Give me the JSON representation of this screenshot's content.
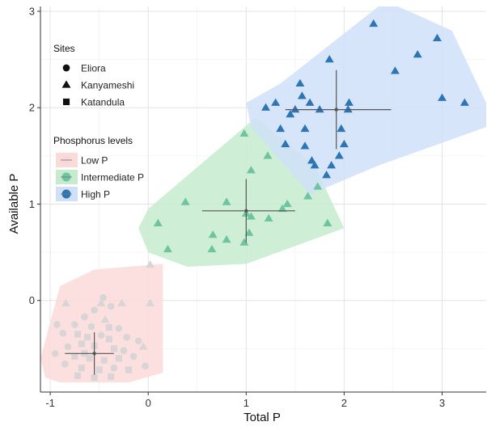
{
  "chart_data": {
    "type": "scatter",
    "xlabel": "Total P",
    "ylabel": "Available P",
    "xlim": [
      -1.1,
      3.45
    ],
    "ylim": [
      -0.95,
      3.05
    ],
    "x_ticks": [
      -1,
      0,
      1,
      2,
      3
    ],
    "y_ticks": [
      0,
      1,
      2,
      3
    ],
    "grid": true,
    "legend_position": "top-left",
    "legend_sites": {
      "title": "Sites",
      "items": [
        {
          "label": "Eliora",
          "shape": "circle"
        },
        {
          "label": "Kanyameshi",
          "shape": "triangle"
        },
        {
          "label": "Katandula",
          "shape": "square"
        }
      ]
    },
    "legend_levels": {
      "title": "Phosphorus levels",
      "items": [
        {
          "label": "Low P",
          "color": "#f8d7d9",
          "fill": "#fbdada"
        },
        {
          "label": "Intermediate P",
          "color": "#6fc4a0",
          "fill": "#c6ebcf"
        },
        {
          "label": "High P",
          "color": "#2e75b6",
          "fill": "#cfe0f8"
        }
      ]
    },
    "series": [
      {
        "name": "Low P",
        "color": "#d9d4d6",
        "fill": "#fbdada",
        "hull": [
          [
            -1.1,
            -0.6
          ],
          [
            -0.9,
            0.15
          ],
          [
            -0.55,
            0.32
          ],
          [
            0.15,
            0.38
          ],
          [
            0.15,
            -0.75
          ],
          [
            -0.2,
            -0.85
          ],
          [
            -0.9,
            -0.85
          ],
          [
            -1.05,
            -0.8
          ]
        ],
        "mean": [
          -0.55,
          -0.55
        ],
        "se_x": [
          -0.85,
          -0.35
        ],
        "se_y": [
          -0.77,
          -0.33
        ],
        "points": [
          {
            "x": -0.84,
            "y": -0.03,
            "s": "triangle"
          },
          {
            "x": -0.48,
            "y": -0.03,
            "s": "triangle"
          },
          {
            "x": -0.27,
            "y": -0.03,
            "s": "triangle"
          },
          {
            "x": 0.02,
            "y": -0.03,
            "s": "triangle"
          },
          {
            "x": 0.02,
            "y": 0.37,
            "s": "triangle"
          },
          {
            "x": -0.46,
            "y": 0.03,
            "s": "circle"
          },
          {
            "x": -0.38,
            "y": -0.06,
            "s": "circle"
          },
          {
            "x": -0.55,
            "y": -0.1,
            "s": "circle"
          },
          {
            "x": -0.65,
            "y": -0.17,
            "s": "circle"
          },
          {
            "x": -0.44,
            "y": -0.2,
            "s": "triangle"
          },
          {
            "x": -0.75,
            "y": -0.25,
            "s": "circle"
          },
          {
            "x": -0.58,
            "y": -0.27,
            "s": "circle"
          },
          {
            "x": -0.3,
            "y": -0.29,
            "s": "circle"
          },
          {
            "x": -0.93,
            "y": -0.25,
            "s": "circle"
          },
          {
            "x": -0.87,
            "y": -0.34,
            "s": "circle"
          },
          {
            "x": -0.72,
            "y": -0.35,
            "s": "square"
          },
          {
            "x": -0.62,
            "y": -0.38,
            "s": "square"
          },
          {
            "x": -0.48,
            "y": -0.36,
            "s": "circle"
          },
          {
            "x": -0.4,
            "y": -0.4,
            "s": "square"
          },
          {
            "x": -0.22,
            "y": -0.38,
            "s": "circle"
          },
          {
            "x": -0.1,
            "y": -0.42,
            "s": "circle"
          },
          {
            "x": -0.05,
            "y": -0.48,
            "s": "triangle"
          },
          {
            "x": -0.68,
            "y": -0.45,
            "s": "square"
          },
          {
            "x": -0.82,
            "y": -0.48,
            "s": "circle"
          },
          {
            "x": -0.55,
            "y": -0.47,
            "s": "square"
          },
          {
            "x": -0.35,
            "y": -0.5,
            "s": "square"
          },
          {
            "x": -0.25,
            "y": -0.52,
            "s": "circle"
          },
          {
            "x": -0.95,
            "y": -0.55,
            "s": "circle"
          },
          {
            "x": -0.75,
            "y": -0.58,
            "s": "square"
          },
          {
            "x": -0.6,
            "y": -0.6,
            "s": "square"
          },
          {
            "x": -0.45,
            "y": -0.62,
            "s": "square"
          },
          {
            "x": -0.3,
            "y": -0.6,
            "s": "square"
          },
          {
            "x": -0.15,
            "y": -0.58,
            "s": "circle"
          },
          {
            "x": -0.85,
            "y": -0.66,
            "s": "circle"
          },
          {
            "x": -0.68,
            "y": -0.7,
            "s": "square"
          },
          {
            "x": -0.5,
            "y": -0.72,
            "s": "square"
          },
          {
            "x": -0.35,
            "y": -0.7,
            "s": "circle"
          },
          {
            "x": -0.2,
            "y": -0.72,
            "s": "square"
          },
          {
            "x": -0.03,
            "y": -0.68,
            "s": "circle"
          },
          {
            "x": -0.72,
            "y": -0.78,
            "s": "square"
          },
          {
            "x": -0.55,
            "y": -0.8,
            "s": "square"
          },
          {
            "x": -0.38,
            "y": -0.79,
            "s": "square"
          },
          {
            "x": -0.65,
            "y": -0.55,
            "s": "square"
          },
          {
            "x": -0.4,
            "y": -0.28,
            "s": "square"
          }
        ]
      },
      {
        "name": "Intermediate P",
        "color": "#6fc4a0",
        "fill": "#c6ebcf",
        "hull": [
          [
            -0.1,
            0.75
          ],
          [
            0.0,
            0.95
          ],
          [
            1.1,
            1.9
          ],
          [
            1.7,
            1.4
          ],
          [
            2.0,
            0.75
          ],
          [
            1.0,
            0.38
          ],
          [
            0.4,
            0.35
          ],
          [
            0.0,
            0.5
          ]
        ],
        "mean": [
          1.0,
          0.93
        ],
        "se_x": [
          0.55,
          1.5
        ],
        "se_y": [
          0.6,
          1.26
        ],
        "points": [
          {
            "x": 0.1,
            "y": 0.8,
            "s": "triangle"
          },
          {
            "x": 0.2,
            "y": 0.53,
            "s": "triangle"
          },
          {
            "x": 0.38,
            "y": 1.02,
            "s": "triangle"
          },
          {
            "x": 0.65,
            "y": 0.53,
            "s": "triangle"
          },
          {
            "x": 0.66,
            "y": 0.68,
            "s": "triangle"
          },
          {
            "x": 0.8,
            "y": 1.02,
            "s": "triangle"
          },
          {
            "x": 0.8,
            "y": 0.63,
            "s": "triangle"
          },
          {
            "x": 0.98,
            "y": 0.6,
            "s": "triangle"
          },
          {
            "x": 1.0,
            "y": 0.9,
            "s": "triangle"
          },
          {
            "x": 1.03,
            "y": 0.7,
            "s": "triangle"
          },
          {
            "x": 1.05,
            "y": 0.87,
            "s": "triangle"
          },
          {
            "x": 0.98,
            "y": 1.73,
            "s": "triangle"
          },
          {
            "x": 1.05,
            "y": 1.35,
            "s": "triangle"
          },
          {
            "x": 1.23,
            "y": 0.85,
            "s": "triangle"
          },
          {
            "x": 1.22,
            "y": 1.5,
            "s": "triangle"
          },
          {
            "x": 1.37,
            "y": 0.95,
            "s": "triangle"
          },
          {
            "x": 1.42,
            "y": 1.0,
            "s": "triangle"
          },
          {
            "x": 1.63,
            "y": 1.08,
            "s": "triangle"
          },
          {
            "x": 1.73,
            "y": 1.18,
            "s": "triangle"
          },
          {
            "x": 1.83,
            "y": 0.8,
            "s": "triangle"
          }
        ]
      },
      {
        "name": "High P",
        "color": "#2e75b6",
        "fill": "#cfe0f8",
        "hull": [
          [
            1.0,
            2.05
          ],
          [
            1.35,
            2.25
          ],
          [
            2.35,
            3.05
          ],
          [
            2.55,
            3.05
          ],
          [
            3.1,
            2.8
          ],
          [
            3.45,
            2.05
          ],
          [
            3.45,
            1.8
          ],
          [
            2.35,
            1.4
          ],
          [
            1.65,
            1.1
          ],
          [
            1.05,
            1.8
          ]
        ],
        "mean": [
          1.92,
          1.98
        ],
        "se_x": [
          1.4,
          2.48
        ],
        "se_y": [
          1.57,
          2.39
        ],
        "points": [
          {
            "x": 1.2,
            "y": 2.0,
            "s": "triangle"
          },
          {
            "x": 1.3,
            "y": 2.05,
            "s": "triangle"
          },
          {
            "x": 1.35,
            "y": 1.78,
            "s": "triangle"
          },
          {
            "x": 1.4,
            "y": 1.62,
            "s": "triangle"
          },
          {
            "x": 1.45,
            "y": 1.93,
            "s": "triangle"
          },
          {
            "x": 1.5,
            "y": 1.98,
            "s": "triangle"
          },
          {
            "x": 1.55,
            "y": 2.25,
            "s": "triangle"
          },
          {
            "x": 1.57,
            "y": 2.12,
            "s": "triangle"
          },
          {
            "x": 1.6,
            "y": 1.78,
            "s": "triangle"
          },
          {
            "x": 1.6,
            "y": 1.6,
            "s": "triangle"
          },
          {
            "x": 1.65,
            "y": 2.05,
            "s": "triangle"
          },
          {
            "x": 1.67,
            "y": 1.45,
            "s": "triangle"
          },
          {
            "x": 1.7,
            "y": 1.4,
            "s": "triangle"
          },
          {
            "x": 1.75,
            "y": 1.98,
            "s": "triangle"
          },
          {
            "x": 1.82,
            "y": 1.3,
            "s": "triangle"
          },
          {
            "x": 1.85,
            "y": 2.5,
            "s": "triangle"
          },
          {
            "x": 1.87,
            "y": 1.4,
            "s": "triangle"
          },
          {
            "x": 1.95,
            "y": 1.5,
            "s": "triangle"
          },
          {
            "x": 1.97,
            "y": 1.78,
            "s": "triangle"
          },
          {
            "x": 2.0,
            "y": 1.62,
            "s": "triangle"
          },
          {
            "x": 2.04,
            "y": 1.98,
            "s": "triangle"
          },
          {
            "x": 2.05,
            "y": 2.05,
            "s": "triangle"
          },
          {
            "x": 2.3,
            "y": 2.87,
            "s": "triangle"
          },
          {
            "x": 2.52,
            "y": 2.38,
            "s": "triangle"
          },
          {
            "x": 2.75,
            "y": 2.55,
            "s": "triangle"
          },
          {
            "x": 2.95,
            "y": 2.72,
            "s": "triangle"
          },
          {
            "x": 3.0,
            "y": 2.1,
            "s": "triangle"
          },
          {
            "x": 3.23,
            "y": 2.05,
            "s": "triangle"
          }
        ]
      }
    ]
  }
}
